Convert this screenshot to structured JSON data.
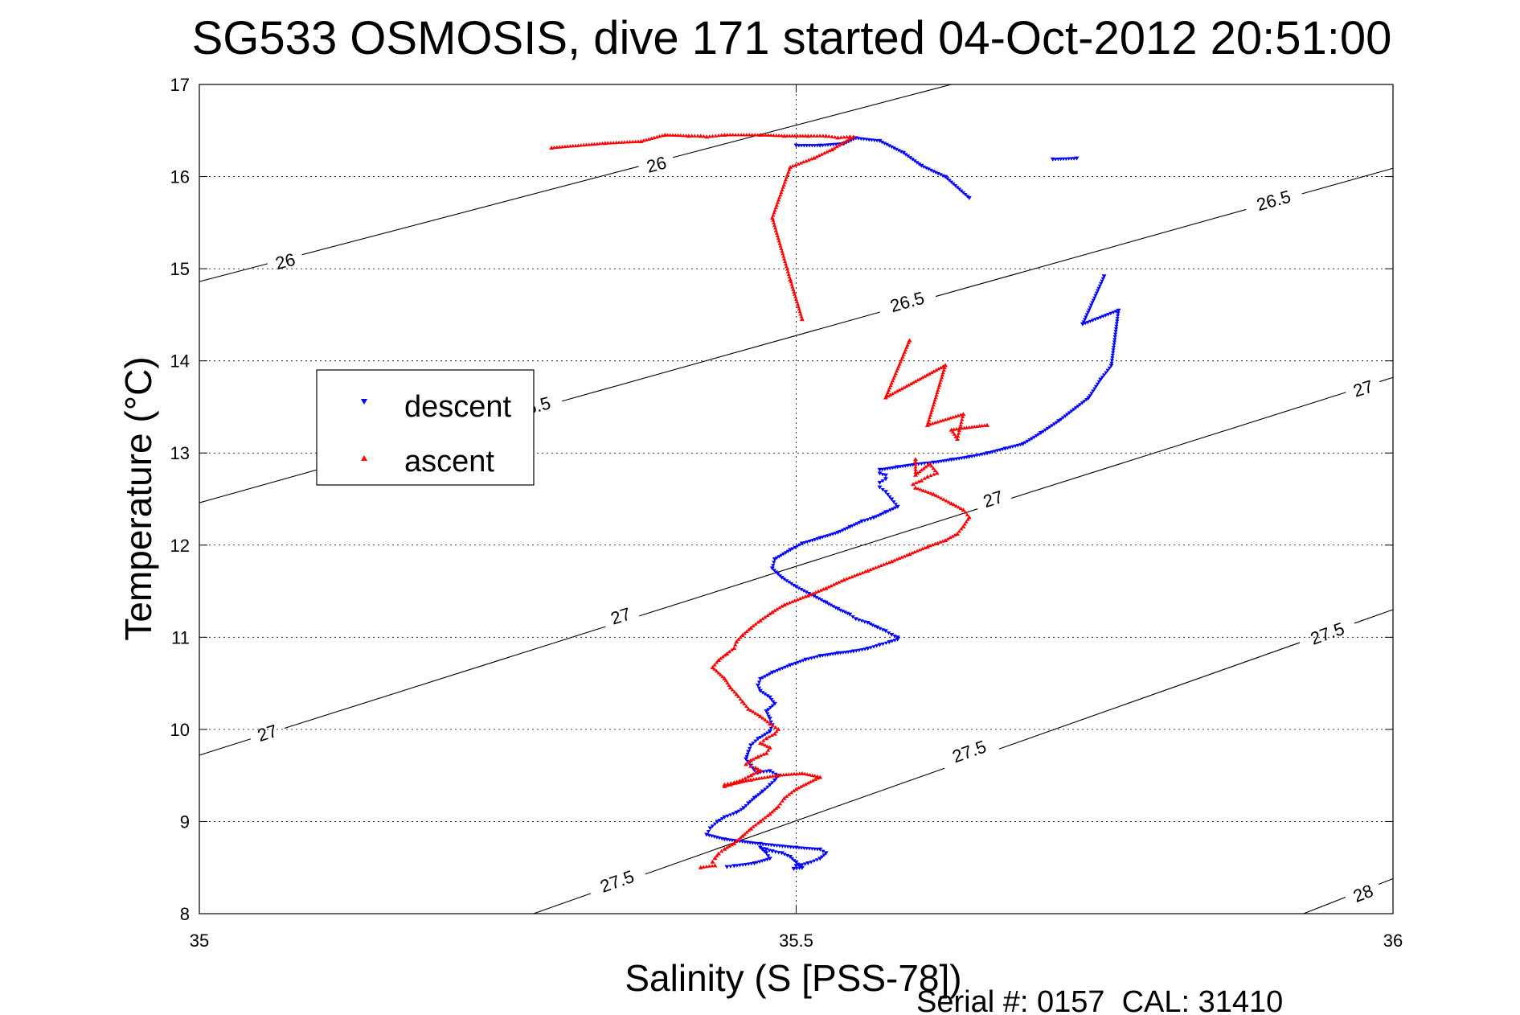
{
  "chart_data": {
    "type": "scatter",
    "title": "SG533 OSMOSIS, dive 171 started 04-Oct-2012 20:51:00",
    "xlabel": "Salinity (S [PSS-78])",
    "ylabel": "Temperature (°C)",
    "xlim": [
      35,
      36
    ],
    "ylim": [
      8,
      17
    ],
    "xticks": [
      35,
      35.5,
      36
    ],
    "xtick_labels": [
      "35",
      "35.5",
      "36"
    ],
    "yticks": [
      8,
      9,
      10,
      11,
      12,
      13,
      14,
      15,
      16,
      17
    ],
    "ytick_labels": [
      "8",
      "9",
      "10",
      "11",
      "12",
      "13",
      "14",
      "15",
      "16",
      "17"
    ],
    "grid": true,
    "legend_position": "upper-left",
    "footer": "Serial #: 0157  CAL: 31410",
    "density_contours": [
      {
        "level": "26",
        "x": [
          35.0,
          35.63
        ],
        "y": [
          14.86,
          17.0
        ],
        "labels": [
          {
            "text": "26",
            "x": 35.072,
            "y": 15.08
          },
          {
            "text": "26",
            "x": 35.383,
            "y": 16.13
          }
        ]
      },
      {
        "level": "26.5",
        "x": [
          35.0,
          36.0
        ],
        "y": [
          12.46,
          16.09
        ],
        "labels": [
          {
            "text": "26.5",
            "x": 35.28,
            "y": 13.5
          },
          {
            "text": "26.5",
            "x": 35.593,
            "y": 14.64
          },
          {
            "text": "26.5",
            "x": 35.9,
            "y": 15.74
          }
        ]
      },
      {
        "level": "27",
        "x": [
          35.0,
          36.0
        ],
        "y": [
          9.72,
          13.82
        ],
        "labels": [
          {
            "text": "27",
            "x": 35.057,
            "y": 9.96
          },
          {
            "text": "27",
            "x": 35.353,
            "y": 11.23
          },
          {
            "text": "27",
            "x": 35.665,
            "y": 12.5
          },
          {
            "text": "27",
            "x": 35.975,
            "y": 13.7
          }
        ]
      },
      {
        "level": "27.5",
        "x": [
          35.28,
          36.0
        ],
        "y": [
          8.0,
          11.3
        ],
        "labels": [
          {
            "text": "27.5",
            "x": 35.35,
            "y": 8.35
          },
          {
            "text": "27.5",
            "x": 35.645,
            "y": 9.76
          },
          {
            "text": "27.5",
            "x": 35.945,
            "y": 11.04
          }
        ]
      },
      {
        "level": "28",
        "x": [
          35.925,
          36.0
        ],
        "y": [
          8.0,
          8.38
        ],
        "labels": [
          {
            "text": "28",
            "x": 35.975,
            "y": 8.22
          }
        ]
      }
    ],
    "series": [
      {
        "name": "descent",
        "color": "#0000ff",
        "marker": "triangle-down",
        "x": [
          35.5,
          35.52,
          35.54,
          35.55,
          35.57,
          35.59,
          35.605,
          35.625,
          35.645,
          35.715,
          35.735,
          35.758,
          35.74,
          35.77,
          35.764,
          35.755,
          35.745,
          35.72,
          35.705,
          35.69,
          35.675,
          35.66,
          35.645,
          35.63,
          35.615,
          35.6,
          35.585,
          35.57,
          35.57,
          35.575,
          35.575,
          35.57,
          35.57,
          35.575,
          35.58,
          35.585,
          35.575,
          35.565,
          35.555,
          35.545,
          35.535,
          35.52,
          35.505,
          35.495,
          35.482,
          35.48,
          35.488,
          35.5,
          35.515,
          35.525,
          35.535,
          35.545,
          35.55,
          35.56,
          35.568,
          35.575,
          35.58,
          35.585,
          35.585,
          35.578,
          35.57,
          35.56,
          35.548,
          35.535,
          35.52,
          35.508,
          35.495,
          35.48,
          35.47,
          35.468,
          35.47,
          35.478,
          35.482,
          35.475,
          35.478,
          35.48,
          35.478,
          35.468,
          35.462,
          35.46,
          35.458,
          35.462,
          35.465,
          35.468,
          35.47,
          35.478,
          35.485,
          35.482,
          35.478,
          35.472,
          35.465,
          35.46,
          35.456,
          35.45,
          35.44,
          35.434,
          35.428,
          35.425,
          35.44,
          35.47,
          35.5,
          35.52,
          35.525,
          35.52,
          35.51,
          35.5,
          35.498,
          35.505,
          35.5,
          35.495,
          35.488,
          35.48,
          35.475,
          35.47,
          35.475,
          35.478,
          35.465,
          35.448,
          35.442
        ],
        "y": [
          16.34,
          16.34,
          16.36,
          16.42,
          16.39,
          16.26,
          16.12,
          16.0,
          15.77,
          16.19,
          16.2,
          14.92,
          14.4,
          14.55,
          13.95,
          13.8,
          13.6,
          13.35,
          13.22,
          13.1,
          13.05,
          13.0,
          12.96,
          12.93,
          12.9,
          12.88,
          12.85,
          12.82,
          12.78,
          12.76,
          12.72,
          12.68,
          12.63,
          12.58,
          12.5,
          12.42,
          12.36,
          12.3,
          12.26,
          12.2,
          12.14,
          12.08,
          12.02,
          11.95,
          11.85,
          11.75,
          11.65,
          11.55,
          11.45,
          11.38,
          11.31,
          11.25,
          11.2,
          11.16,
          11.11,
          11.07,
          11.03,
          11.0,
          10.98,
          10.95,
          10.92,
          10.88,
          10.85,
          10.83,
          10.8,
          10.76,
          10.7,
          10.62,
          10.55,
          10.48,
          10.42,
          10.35,
          10.28,
          10.2,
          10.12,
          10.05,
          9.98,
          9.9,
          9.83,
          9.76,
          9.68,
          9.61,
          9.56,
          9.53,
          9.54,
          9.55,
          9.5,
          9.45,
          9.4,
          9.33,
          9.26,
          9.2,
          9.15,
          9.1,
          9.05,
          9.0,
          8.93,
          8.86,
          8.81,
          8.76,
          8.72,
          8.7,
          8.66,
          8.6,
          8.55,
          8.52,
          8.49,
          8.5,
          8.56,
          8.62,
          8.66,
          8.68,
          8.7,
          8.72,
          8.66,
          8.6,
          8.55,
          8.52,
          8.51
        ]
      },
      {
        "name": "ascent",
        "color": "#ff0000",
        "marker": "triangle-up",
        "x": [
          35.295,
          35.34,
          35.37,
          35.39,
          35.41,
          35.42,
          35.425,
          35.44,
          35.47,
          35.49,
          35.51,
          35.525,
          35.535,
          35.545,
          35.548,
          35.53,
          35.515,
          35.495,
          35.48,
          35.495,
          35.505,
          35.595,
          35.575,
          35.625,
          35.61,
          35.64,
          35.635,
          35.63,
          35.66,
          35.6,
          35.6,
          35.612,
          35.618,
          35.61,
          35.605,
          35.598,
          35.6,
          35.615,
          35.63,
          35.64,
          35.645,
          35.64,
          35.635,
          35.625,
          35.61,
          35.595,
          35.58,
          35.56,
          35.54,
          35.525,
          35.51,
          35.49,
          35.48,
          35.47,
          35.462,
          35.455,
          35.45,
          35.448,
          35.442,
          35.435,
          35.43,
          35.44,
          35.445,
          35.45,
          35.455,
          35.46,
          35.47,
          35.478,
          35.485,
          35.482,
          35.475,
          35.47,
          35.478,
          35.475,
          35.468,
          35.462,
          35.458,
          35.462,
          35.466,
          35.47,
          35.462,
          35.455,
          35.448,
          35.44,
          35.44,
          35.445,
          35.462,
          35.485,
          35.505,
          35.52,
          35.5,
          35.49,
          35.485,
          35.478,
          35.47,
          35.462,
          35.455,
          35.448,
          35.44,
          35.435,
          35.432,
          35.43,
          35.432,
          35.42
        ],
        "y": [
          16.31,
          16.36,
          16.38,
          16.45,
          16.44,
          16.44,
          16.43,
          16.45,
          16.45,
          16.44,
          16.44,
          16.44,
          16.42,
          16.43,
          16.43,
          16.29,
          16.2,
          16.1,
          15.55,
          14.88,
          14.45,
          14.22,
          13.6,
          13.95,
          13.3,
          13.42,
          13.15,
          13.25,
          13.3,
          12.93,
          12.76,
          12.88,
          12.78,
          12.74,
          12.7,
          12.66,
          12.62,
          12.55,
          12.45,
          12.38,
          12.3,
          12.2,
          12.12,
          12.05,
          11.98,
          11.9,
          11.82,
          11.72,
          11.62,
          11.53,
          11.45,
          11.35,
          11.27,
          11.18,
          11.1,
          11.02,
          10.95,
          10.88,
          10.82,
          10.75,
          10.67,
          10.55,
          10.45,
          10.38,
          10.3,
          10.22,
          10.14,
          10.06,
          10.0,
          9.95,
          9.9,
          9.85,
          9.8,
          9.74,
          9.7,
          9.66,
          9.62,
          9.6,
          9.58,
          9.55,
          9.5,
          9.45,
          9.42,
          9.4,
          9.38,
          9.4,
          9.45,
          9.5,
          9.52,
          9.48,
          9.35,
          9.25,
          9.16,
          9.08,
          9.0,
          8.92,
          8.84,
          8.76,
          8.7,
          8.65,
          8.6,
          8.56,
          8.52,
          8.5
        ]
      }
    ]
  }
}
